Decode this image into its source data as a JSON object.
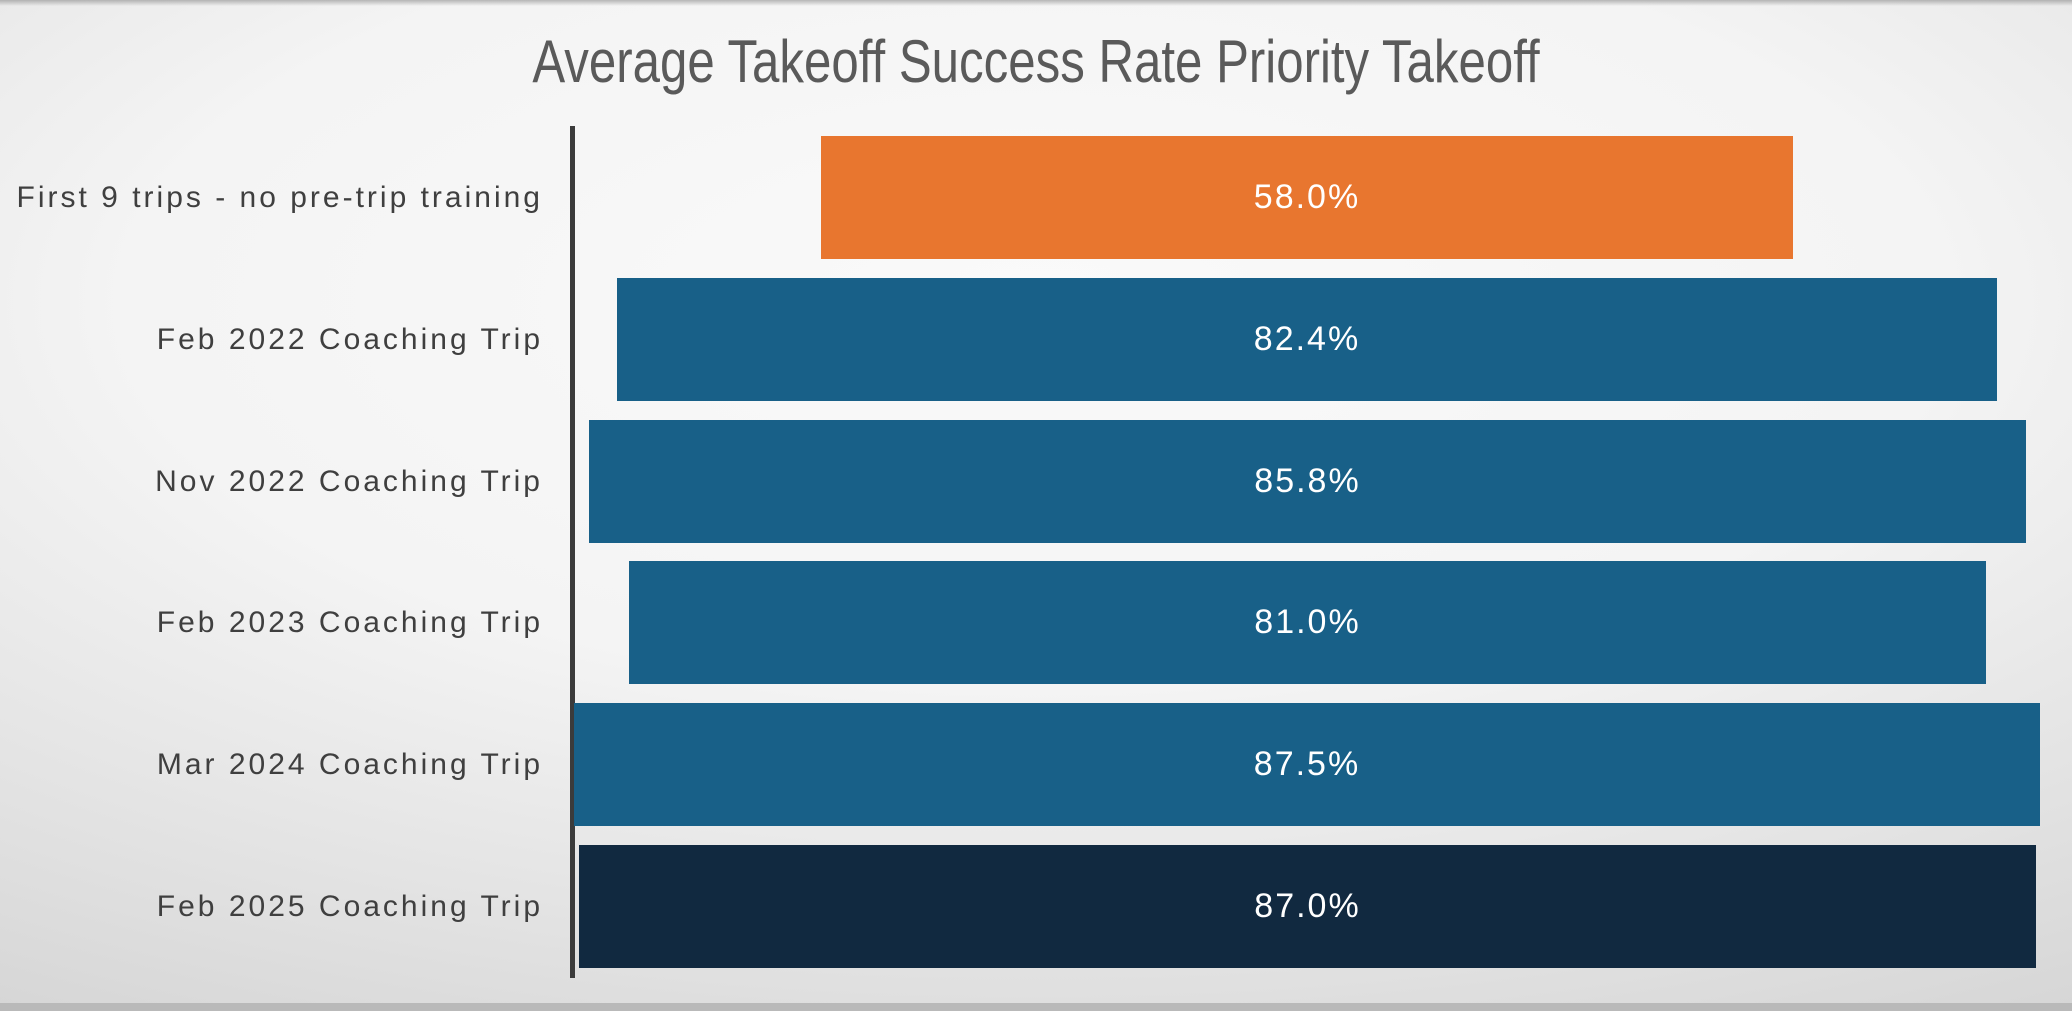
{
  "chart_data": {
    "type": "bar",
    "orientation": "horizontal",
    "bar_style": "centered-funnel",
    "title": "Average Takeoff Success Rate Priority Takeoff",
    "categories": [
      "First 9 trips - no pre-trip training",
      "Feb 2022 Coaching Trip",
      "Nov 2022 Coaching Trip",
      "Feb 2023 Coaching Trip",
      "Mar 2024 Coaching Trip",
      "Feb 2025 Coaching Trip"
    ],
    "values": [
      58.0,
      82.4,
      85.8,
      81.0,
      87.5,
      87.0
    ],
    "value_labels": [
      "58.0%",
      "82.4%",
      "85.8%",
      "81.0%",
      "87.5%",
      "87.0%"
    ],
    "unit": "%",
    "xlabel": "",
    "ylabel": "",
    "legend": false,
    "grid": false,
    "data_labels_position": "center",
    "bar_colors": [
      "#E8762F",
      "#186088",
      "#186088",
      "#186088",
      "#186088",
      "#112940"
    ]
  },
  "colors": {
    "orange_bar": "#E8762F",
    "blue_bar": "#186088",
    "navy_bar": "#112940",
    "title_text": "#5A5A5A",
    "category_text": "#3F3F3F",
    "value_text": "#FFFFFF",
    "axis_line": "#3B3B3B",
    "bottom_edge": "#B9B9B9"
  }
}
